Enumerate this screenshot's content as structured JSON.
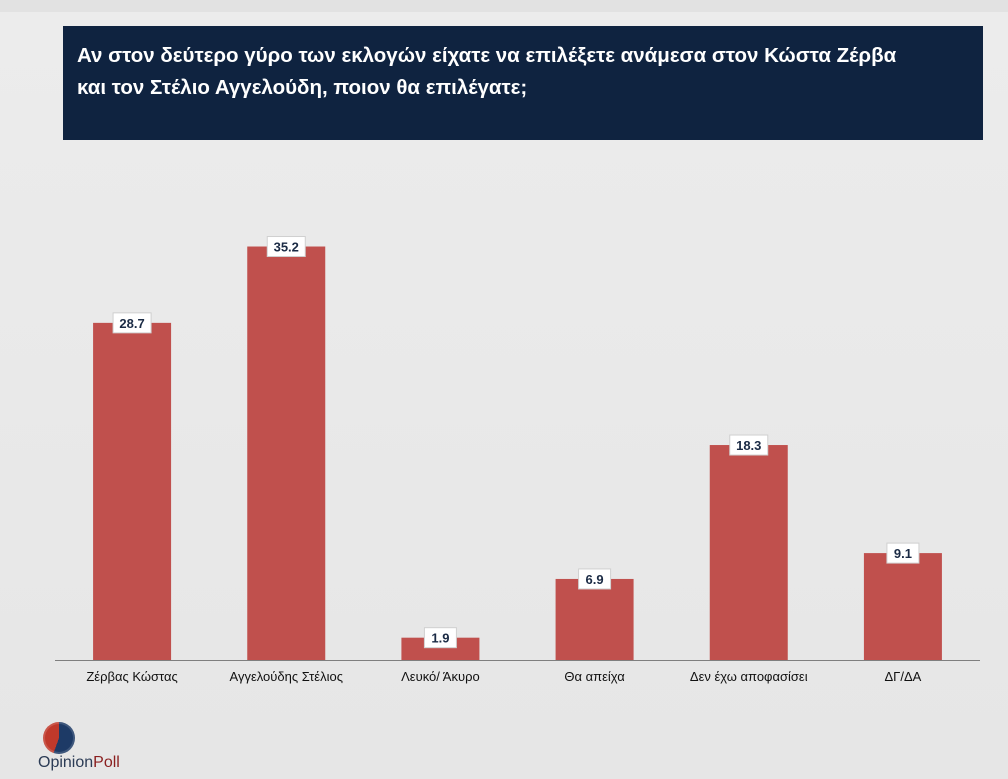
{
  "title": {
    "line1": "Αν στον δεύτερο γύρο των εκλογών είχατε να επιλέξετε ανάμεσα στον Κώστα Ζέρβα",
    "line2": "και τον Στέλιο Αγγελούδη, ποιον θα επιλέγατε;"
  },
  "colors": {
    "title_bg": "#0f2340",
    "bar": "#c0504d",
    "axis": "#7f7f7f",
    "label_text": "#1a2a44"
  },
  "chart_data": {
    "type": "bar",
    "title": "Αν στον δεύτερο γύρο των εκλογών είχατε να επιλέξετε ανάμεσα στον Κώστα Ζέρβα και τον Στέλιο Αγγελούδη, ποιον θα επιλέγατε;",
    "categories": [
      "Ζέρβας Κώστας",
      "Αγγελούδης Στέλιος",
      "Λευκό/ Άκυρο",
      "Θα απείχα",
      "Δεν έχω αποφασίσει",
      "ΔΓ/ΔΑ"
    ],
    "values": [
      28.7,
      35.2,
      1.9,
      6.9,
      18.3,
      9.1
    ],
    "data_labels": [
      "28.7",
      "35.2",
      "1.9",
      "6.9",
      "18.3",
      "9.1"
    ],
    "xlabel": "",
    "ylabel": "",
    "ylim": [
      0,
      39.5
    ],
    "grid": false,
    "legend": "none"
  },
  "logo": {
    "word1": "Opinion",
    "word2": "Poll"
  }
}
